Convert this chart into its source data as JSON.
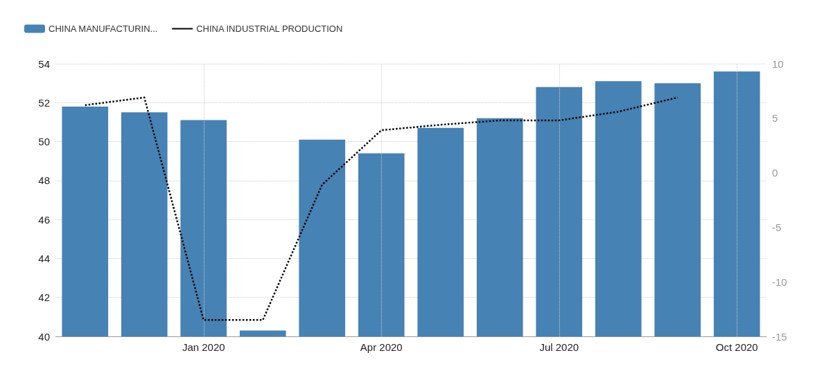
{
  "chart_data": {
    "type": "bar",
    "categories": [
      null,
      null,
      "Jan 2020",
      null,
      null,
      "Apr 2020",
      null,
      null,
      "Jul 2020",
      null,
      null,
      "Oct 2020"
    ],
    "series": [
      {
        "name": "CHINA MANUFACTURIN...",
        "color": "#4682b4",
        "values": [
          51.8,
          51.5,
          51.1,
          40.3,
          50.1,
          49.4,
          50.7,
          51.2,
          52.8,
          53.1,
          53.0,
          53.6
        ]
      },
      {
        "name": "CHINA INDUSTRIAL PRODUCTION",
        "type": "line",
        "axis": "y2",
        "color": "#000000",
        "line_style": "dotted",
        "marker": "none",
        "values": [
          6.2,
          6.9,
          -13.5,
          -13.5,
          -1.1,
          3.9,
          4.4,
          4.8,
          4.8,
          5.6,
          6.9,
          null
        ]
      }
    ],
    "ylim": [
      40,
      54
    ],
    "yticks": [
      40,
      42,
      44,
      46,
      48,
      50,
      52,
      54
    ],
    "y2lim": [
      -15,
      10
    ],
    "y2ticks": [
      -15,
      -10,
      -5,
      0,
      5,
      10
    ],
    "grid": true,
    "legend": "top left"
  }
}
